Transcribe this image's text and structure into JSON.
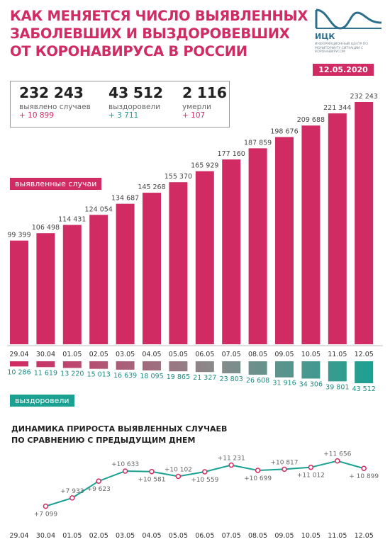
{
  "header": {
    "title_lines": [
      "Как меняется число выявленных",
      "заболевших и выздоровевших",
      "от коронавируса в России"
    ],
    "logo_name": "ИЦК",
    "logo_sub": "Информационный центр по мониторингу ситуации с коронавирусом",
    "date": "12.05.2020"
  },
  "stats": {
    "cases": {
      "value": "232 243",
      "label": "выявлено случаев",
      "delta": "+ 10 899"
    },
    "recovered": {
      "value": "43 512",
      "label": "выздоровели",
      "delta": "+ 3 711"
    },
    "deaths": {
      "value": "2 116",
      "label": "умерли",
      "delta": "+ 107"
    }
  },
  "labels": {
    "cases_tag": "выявленные случаи",
    "recovered_tag": "выздоровели",
    "subtitle_lines": [
      "Динамика прироста выявленных случаев",
      "по сравнению с предыдущим днем"
    ]
  },
  "colors": {
    "accent": "#d12b63",
    "teal": "#1aa192",
    "dark_teal": "#1a8c82",
    "grey": "#9a9a9a"
  },
  "chart_data": [
    {
      "type": "bar",
      "name": "выявленные случаи",
      "categories": [
        "29.04",
        "30.04",
        "01.05",
        "02.05",
        "03.05",
        "04.05",
        "05.05",
        "06.05",
        "07.05",
        "08.05",
        "09.05",
        "10.05",
        "11.05",
        "12.05"
      ],
      "values": [
        99399,
        106498,
        114431,
        124054,
        134687,
        145268,
        155370,
        165929,
        177160,
        187859,
        198676,
        209688,
        221344,
        232243
      ],
      "value_labels": [
        "99 399",
        "106 498",
        "114 431",
        "124 054",
        "134 687",
        "145 268",
        "155 370",
        "165 929",
        "177 160",
        "187 859",
        "198 676",
        "209 688",
        "221 344",
        "232 243"
      ]
    },
    {
      "type": "bar",
      "name": "выздоровели",
      "categories": [
        "29.04",
        "30.04",
        "01.05",
        "02.05",
        "03.05",
        "04.05",
        "05.05",
        "06.05",
        "07.05",
        "08.05",
        "09.05",
        "10.05",
        "11.05",
        "12.05"
      ],
      "values": [
        10286,
        11619,
        13220,
        15013,
        16639,
        18095,
        19865,
        21327,
        23803,
        26608,
        31916,
        34306,
        39801,
        43512
      ],
      "value_labels": [
        "10 286",
        "11 619",
        "13 220",
        "15 013",
        "16 639",
        "18 095",
        "19 865",
        "21 327",
        "23 803",
        "26 608",
        "31 916",
        "34 306",
        "39 801",
        "43 512"
      ]
    },
    {
      "type": "line",
      "name": "прирост выявленных случаев",
      "x": [
        "29.04",
        "30.04",
        "01.05",
        "02.05",
        "03.05",
        "04.05",
        "05.05",
        "06.05",
        "07.05",
        "08.05",
        "09.05",
        "10.05",
        "11.05",
        "12.05"
      ],
      "values": [
        null,
        7099,
        7933,
        9623,
        10633,
        10581,
        10102,
        10559,
        11231,
        10699,
        10817,
        11012,
        11656,
        10899
      ],
      "value_labels": [
        "",
        "+7 099",
        "+7 933",
        "+9 623",
        "+10 633",
        "+10 581",
        "+10 102",
        "+10 559",
        "+11 231",
        "+10 699",
        "+10 817",
        "+11 012",
        "+11 656",
        "+ 10 899"
      ]
    }
  ]
}
